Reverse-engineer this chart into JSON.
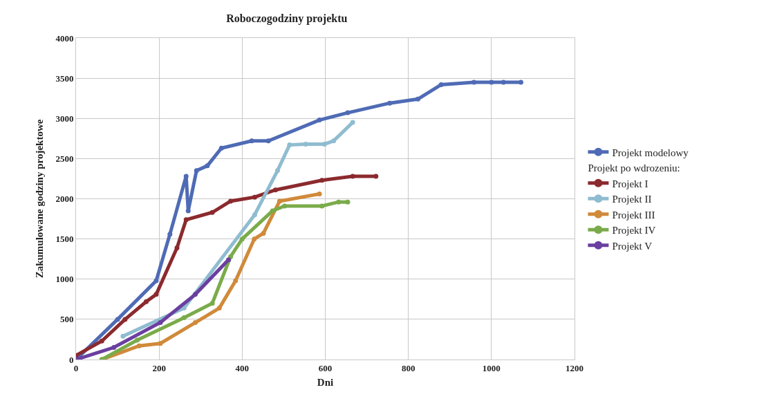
{
  "chart_data": {
    "type": "line",
    "title": "Roboczogodziny projektu",
    "xlabel": "Dni",
    "ylabel": "Zakumulowane godziny projektowe",
    "legend_title": "Projekt po wdrozeniu:",
    "xlim": [
      0,
      1200
    ],
    "xticks": [
      0,
      200,
      400,
      600,
      800,
      1000,
      1200
    ],
    "ylim": [
      0,
      4000
    ],
    "yticks": [
      0,
      500,
      1000,
      1500,
      2000,
      2500,
      3000,
      3500,
      4000
    ],
    "grid": true,
    "legend": "right",
    "marker": "circle",
    "series": [
      {
        "name": "Projekt modelowy",
        "color": "#4f6bb5",
        "x": [
          0,
          100,
          193,
          226,
          265,
          270,
          290,
          316,
          350,
          423,
          463,
          586,
          654,
          755,
          823,
          879,
          958,
          1000,
          1029,
          1071
        ],
        "values": [
          0,
          500,
          980,
          1560,
          2280,
          1850,
          2350,
          2410,
          2630,
          2720,
          2720,
          2980,
          3070,
          3190,
          3240,
          3420,
          3450,
          3450,
          3450,
          3450
        ]
      },
      {
        "name": "Projekt I",
        "color": "#8b2a2e",
        "x": [
          0,
          62,
          118,
          169,
          193,
          243,
          265,
          328,
          372,
          430,
          480,
          592,
          666,
          722
        ],
        "values": [
          50,
          230,
          500,
          720,
          810,
          1390,
          1740,
          1830,
          1970,
          2020,
          2110,
          2230,
          2280,
          2280
        ]
      },
      {
        "name": "Projekt II",
        "color": "#8fbcd0",
        "x": [
          113,
          260,
          430,
          485,
          514,
          553,
          598,
          620,
          666
        ],
        "values": [
          290,
          640,
          1800,
          2350,
          2670,
          2680,
          2680,
          2720,
          2950
        ]
      },
      {
        "name": "Projekt III",
        "color": "#d08a3a",
        "x": [
          62,
          152,
          203,
          287,
          345,
          384,
          429,
          451,
          490,
          586
        ],
        "values": [
          0,
          170,
          200,
          460,
          640,
          980,
          1500,
          1570,
          1970,
          2060
        ]
      },
      {
        "name": "Projekt IV",
        "color": "#7aab4a",
        "x": [
          62,
          147,
          260,
          328,
          372,
          400,
          473,
          502,
          592,
          632,
          654
        ],
        "values": [
          0,
          240,
          520,
          700,
          1280,
          1500,
          1850,
          1910,
          1910,
          1960,
          1960
        ]
      },
      {
        "name": "Projekt V",
        "color": "#6b3fa0",
        "x": [
          0,
          91,
          203,
          287,
          367
        ],
        "values": [
          0,
          150,
          460,
          810,
          1240
        ]
      }
    ]
  }
}
